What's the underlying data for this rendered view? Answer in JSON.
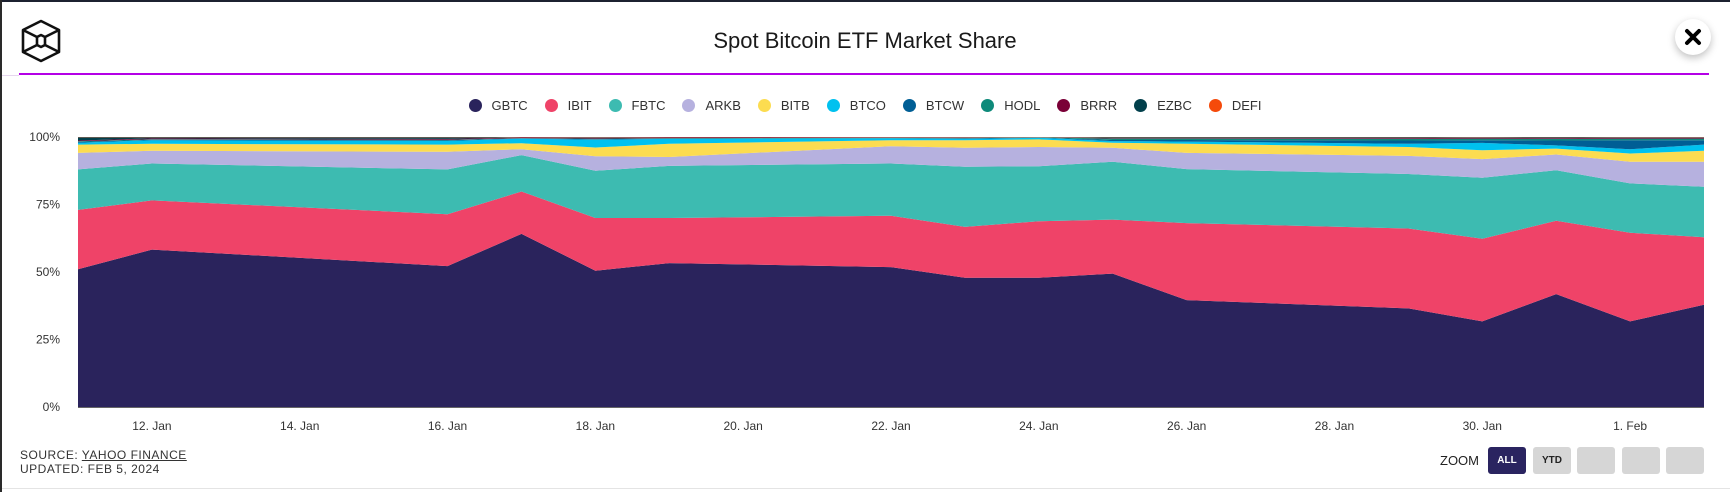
{
  "header": {
    "title": "Spot Bitcoin ETF Market Share",
    "logo_icon": "hexagon-cube-logo",
    "close_icon": "close-x-icon"
  },
  "footer": {
    "source_prefix": "SOURCE: ",
    "source_link": "YAHOO FINANCE",
    "updated": "UPDATED: FEB 5, 2024"
  },
  "zoom": {
    "label": "ZOOM",
    "buttons": [
      "ALL",
      "YTD",
      "",
      "",
      ""
    ],
    "active": "ALL"
  },
  "chart_data": {
    "type": "area",
    "stacking": "percent",
    "title": "Spot Bitcoin ETF Market Share",
    "legend_position": "top",
    "grid": false,
    "ylim": [
      0,
      100
    ],
    "y_ticks": [
      "0%",
      "25%",
      "50%",
      "75%",
      "100%"
    ],
    "x_ticks": [
      "12. Jan",
      "14. Jan",
      "16. Jan",
      "18. Jan",
      "20. Jan",
      "22. Jan",
      "24. Jan",
      "26. Jan",
      "28. Jan",
      "30. Jan",
      "1. Feb"
    ],
    "x_tick_dates": [
      "2024-01-12",
      "2024-01-14",
      "2024-01-16",
      "2024-01-18",
      "2024-01-20",
      "2024-01-22",
      "2024-01-24",
      "2024-01-26",
      "2024-01-28",
      "2024-01-30",
      "2024-02-01"
    ],
    "x": [
      "2024-01-11",
      "2024-01-12",
      "2024-01-16",
      "2024-01-17",
      "2024-01-18",
      "2024-01-19",
      "2024-01-22",
      "2024-01-23",
      "2024-01-24",
      "2024-01-25",
      "2024-01-26",
      "2024-01-29",
      "2024-01-30",
      "2024-01-31",
      "2024-02-01",
      "2024-02-02"
    ],
    "series": [
      {
        "name": "GBTC",
        "color": "#2a235c",
        "values": [
          51.0,
          58.3,
          52.2,
          64.1,
          50.5,
          53.3,
          51.8,
          47.9,
          47.9,
          49.4,
          39.6,
          36.5,
          31.7,
          41.8,
          31.7,
          37.9
        ]
      },
      {
        "name": "IBIT",
        "color": "#ef4368",
        "values": [
          22.0,
          18.2,
          19.2,
          15.7,
          19.5,
          16.7,
          19.0,
          18.8,
          20.9,
          20.0,
          28.5,
          29.6,
          30.6,
          27.2,
          32.8,
          25.0
        ]
      },
      {
        "name": "FBTC",
        "color": "#3dbbb1",
        "values": [
          15.0,
          13.7,
          16.6,
          13.5,
          17.5,
          19.3,
          19.4,
          22.3,
          20.4,
          21.4,
          20.0,
          20.2,
          22.6,
          18.7,
          18.3,
          18.7
        ]
      },
      {
        "name": "ARKB",
        "color": "#b6b1df",
        "values": [
          6.1,
          4.7,
          6.5,
          2.2,
          5.4,
          3.3,
          6.4,
          7.0,
          7.1,
          5.2,
          6.0,
          6.7,
          6.9,
          5.8,
          8.0,
          9.2
        ]
      },
      {
        "name": "BITB",
        "color": "#fcdc50",
        "values": [
          3.1,
          2.6,
          2.7,
          2.2,
          3.2,
          4.9,
          2.2,
          2.8,
          2.8,
          1.9,
          3.4,
          3.3,
          3.3,
          2.2,
          3.1,
          4.1
        ]
      },
      {
        "name": "BTCO",
        "color": "#00c1ef",
        "values": [
          0.7,
          1.3,
          1.3,
          1.7,
          2.9,
          1.8,
          0.7,
          0.5,
          0.6,
          0.6,
          0.8,
          1.2,
          2.7,
          1.2,
          1.6,
          2.3
        ]
      },
      {
        "name": "BTCW",
        "color": "#005e95",
        "values": [
          0.3,
          0.2,
          0.3,
          0.1,
          0.2,
          0.1,
          0.1,
          0.2,
          0.1,
          0.4,
          0.6,
          1.2,
          1.0,
          1.8,
          3.3,
          1.6
        ]
      },
      {
        "name": "HODL",
        "color": "#0e8a7a",
        "values": [
          0.2,
          0.2,
          0.2,
          0.1,
          0.2,
          0.2,
          0.1,
          0.2,
          0.1,
          0.5,
          0.5,
          0.6,
          0.6,
          0.6,
          0.6,
          0.6
        ]
      },
      {
        "name": "BRRR",
        "color": "#7a0037",
        "values": [
          0.3,
          0.3,
          0.3,
          0.2,
          0.3,
          0.2,
          0.1,
          0.1,
          0.0,
          0.2,
          0.2,
          0.3,
          0.3,
          0.3,
          0.3,
          0.3
        ]
      },
      {
        "name": "EZBC",
        "color": "#02404c",
        "values": [
          1.2,
          0.4,
          0.6,
          0.1,
          0.2,
          0.1,
          0.1,
          0.1,
          0.0,
          0.3,
          0.3,
          0.3,
          0.2,
          0.3,
          0.2,
          0.2
        ]
      },
      {
        "name": "DEFI",
        "color": "#f54a0a",
        "values": [
          0.1,
          0.1,
          0.1,
          0.1,
          0.1,
          0.1,
          0.1,
          0.1,
          0.1,
          0.1,
          0.1,
          0.1,
          0.1,
          0.1,
          0.1,
          0.1
        ]
      }
    ]
  }
}
